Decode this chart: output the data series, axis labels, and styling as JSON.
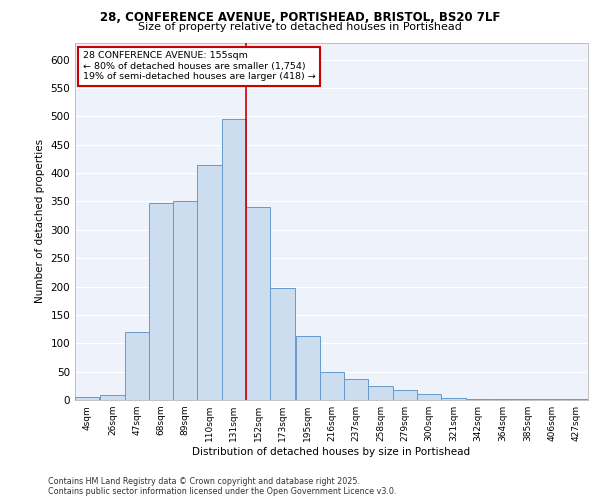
{
  "title_line1": "28, CONFERENCE AVENUE, PORTISHEAD, BRISTOL, BS20 7LF",
  "title_line2": "Size of property relative to detached houses in Portishead",
  "xlabel": "Distribution of detached houses by size in Portishead",
  "ylabel": "Number of detached properties",
  "bar_color": "#ccddf0",
  "bar_edge_color": "#6699cc",
  "background_color": "#eef2fa",
  "grid_color": "#ffffff",
  "vline_color": "#cc0000",
  "annotation_title": "28 CONFERENCE AVENUE: 155sqm",
  "annotation_line2": "← 80% of detached houses are smaller (1,754)",
  "annotation_line3": "19% of semi-detached houses are larger (418) →",
  "annotation_box_color": "#ffffff",
  "annotation_box_edge": "#cc0000",
  "footer_line1": "Contains HM Land Registry data © Crown copyright and database right 2025.",
  "footer_line2": "Contains public sector information licensed under the Open Government Licence v3.0.",
  "bin_labels": [
    "4sqm",
    "26sqm",
    "47sqm",
    "68sqm",
    "89sqm",
    "110sqm",
    "131sqm",
    "152sqm",
    "173sqm",
    "195sqm",
    "216sqm",
    "237sqm",
    "258sqm",
    "279sqm",
    "300sqm",
    "321sqm",
    "342sqm",
    "364sqm",
    "385sqm",
    "406sqm",
    "427sqm"
  ],
  "bin_edges": [
    4,
    26,
    47,
    68,
    89,
    110,
    131,
    152,
    173,
    195,
    216,
    237,
    258,
    279,
    300,
    321,
    342,
    364,
    385,
    406,
    427
  ],
  "bin_width": 21,
  "bar_heights": [
    5,
    8,
    120,
    348,
    350,
    415,
    495,
    340,
    197,
    113,
    50,
    37,
    25,
    18,
    10,
    3,
    1,
    2,
    1,
    2,
    1
  ],
  "vline_x": 152,
  "ylim": [
    0,
    630
  ],
  "yticks": [
    0,
    50,
    100,
    150,
    200,
    250,
    300,
    350,
    400,
    450,
    500,
    550,
    600
  ]
}
